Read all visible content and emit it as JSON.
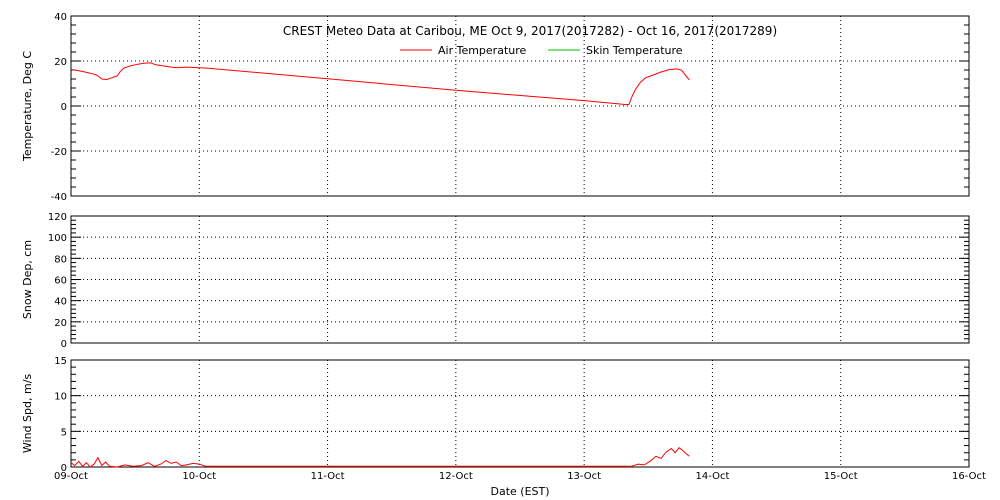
{
  "chart_data": {
    "type": "line",
    "title": "CREST Meteo Data at Caribou, ME   Oct  9, 2017(2017282) - Oct 16, 2017(2017289)",
    "xlabel": "Date (EST)",
    "x_ticks": [
      "09-Oct",
      "10-Oct",
      "11-Oct",
      "12-Oct",
      "13-Oct",
      "14-Oct",
      "15-Oct",
      "16-Oct"
    ],
    "xlim": [
      0,
      7
    ],
    "grid": true,
    "legend": {
      "position": "top-center",
      "entries": [
        "Air Temperature",
        "Skin Temperature"
      ]
    },
    "colors": {
      "air_temperature": "#ff0000",
      "skin_temperature": "#00c000",
      "wind": "#ff0000",
      "grid": "#000000"
    },
    "panels": [
      {
        "id": "temperature",
        "ylabel": "Temperature, Deg C",
        "ylim": [
          -40,
          40
        ],
        "yticks": [
          -40,
          -20,
          0,
          20,
          40
        ],
        "series": [
          {
            "name": "Air Temperature",
            "color": "#ff0000",
            "points": [
              [
                0.0,
                16.2
              ],
              [
                0.05,
                15.8
              ],
              [
                0.1,
                15.2
              ],
              [
                0.15,
                14.6
              ],
              [
                0.2,
                13.8
              ],
              [
                0.24,
                12.0
              ],
              [
                0.28,
                11.8
              ],
              [
                0.32,
                12.6
              ],
              [
                0.36,
                13.4
              ],
              [
                0.38,
                15.0
              ],
              [
                0.41,
                16.8
              ],
              [
                0.46,
                17.8
              ],
              [
                0.52,
                18.6
              ],
              [
                0.57,
                19.0
              ],
              [
                0.62,
                19.2
              ],
              [
                0.66,
                18.3
              ],
              [
                0.7,
                18.0
              ],
              [
                0.76,
                17.4
              ],
              [
                0.82,
                17.0
              ],
              [
                0.9,
                17.3
              ],
              [
                1.0,
                17.0
              ],
              [
                1.05,
                16.9
              ],
              [
                2.0,
                12.1
              ],
              [
                3.0,
                7.0
              ],
              [
                4.0,
                2.4
              ],
              [
                4.33,
                0.6
              ],
              [
                4.35,
                0.7
              ],
              [
                4.37,
                3.8
              ],
              [
                4.4,
                7.4
              ],
              [
                4.44,
                10.6
              ],
              [
                4.48,
                12.6
              ],
              [
                4.54,
                13.8
              ],
              [
                4.6,
                15.1
              ],
              [
                4.66,
                16.1
              ],
              [
                4.72,
                16.5
              ],
              [
                4.76,
                15.9
              ],
              [
                4.79,
                13.7
              ],
              [
                4.82,
                11.6
              ]
            ]
          },
          {
            "name": "Skin Temperature",
            "color": "#00c000",
            "points": []
          }
        ]
      },
      {
        "id": "snow",
        "ylabel": "Snow Dep, cm",
        "ylim": [
          0,
          120
        ],
        "yticks": [
          0,
          20,
          40,
          60,
          80,
          100,
          120
        ],
        "series": []
      },
      {
        "id": "wind",
        "ylabel": "Wind Spd, m/s",
        "ylim": [
          0,
          15
        ],
        "yticks": [
          0,
          5,
          10,
          15
        ],
        "series": [
          {
            "name": "Wind Speed",
            "color": "#ff0000",
            "points": [
              [
                0.0,
                0.6
              ],
              [
                0.03,
                0.2
              ],
              [
                0.06,
                0.8
              ],
              [
                0.09,
                0.1
              ],
              [
                0.12,
                0.6
              ],
              [
                0.15,
                0.0
              ],
              [
                0.18,
                0.4
              ],
              [
                0.21,
                1.3
              ],
              [
                0.24,
                0.2
              ],
              [
                0.27,
                0.7
              ],
              [
                0.3,
                0.1
              ],
              [
                0.36,
                0.0
              ],
              [
                0.42,
                0.3
              ],
              [
                0.48,
                0.1
              ],
              [
                0.55,
                0.2
              ],
              [
                0.6,
                0.6
              ],
              [
                0.65,
                0.1
              ],
              [
                0.7,
                0.4
              ],
              [
                0.74,
                0.9
              ],
              [
                0.78,
                0.5
              ],
              [
                0.82,
                0.7
              ],
              [
                0.86,
                0.2
              ],
              [
                0.9,
                0.3
              ],
              [
                0.95,
                0.5
              ],
              [
                1.0,
                0.4
              ],
              [
                1.05,
                0.1
              ],
              [
                4.37,
                0.1
              ],
              [
                4.42,
                0.4
              ],
              [
                4.47,
                0.3
              ],
              [
                4.52,
                0.9
              ],
              [
                4.56,
                1.5
              ],
              [
                4.6,
                1.2
              ],
              [
                4.64,
                2.1
              ],
              [
                4.68,
                2.6
              ],
              [
                4.71,
                2.0
              ],
              [
                4.74,
                2.7
              ],
              [
                4.77,
                2.3
              ],
              [
                4.8,
                1.8
              ],
              [
                4.82,
                1.5
              ]
            ]
          }
        ]
      }
    ]
  }
}
